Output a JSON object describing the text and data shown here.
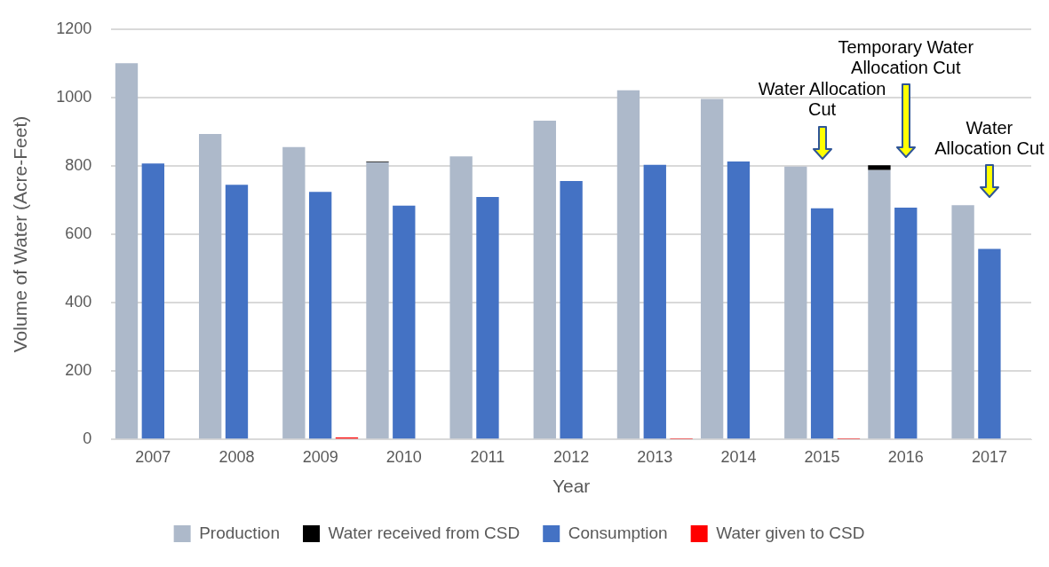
{
  "chart_data": {
    "type": "bar",
    "xlabel": "Year",
    "ylabel": "Volume of Water (Acre-Feet)",
    "categories": [
      "2007",
      "2008",
      "2009",
      "2010",
      "2011",
      "2012",
      "2013",
      "2014",
      "2015",
      "2016",
      "2017"
    ],
    "series": [
      {
        "name": "Production",
        "color": "#adb9ca",
        "values": [
          1100,
          893,
          855,
          811,
          828,
          932,
          1021,
          996,
          798,
          788,
          685
        ]
      },
      {
        "name": "Water received from CSD",
        "color": "#000000",
        "base": [
          null,
          null,
          null,
          811,
          null,
          null,
          null,
          null,
          null,
          788,
          null
        ],
        "values": [
          null,
          null,
          null,
          2,
          null,
          null,
          null,
          null,
          null,
          14,
          null
        ]
      },
      {
        "name": "Consumption",
        "color": "#4472c4",
        "values": [
          807,
          745,
          724,
          684,
          709,
          756,
          803,
          813,
          676,
          678,
          557
        ]
      },
      {
        "name": "Water given to CSD",
        "color": "#ff0000",
        "values": [
          0,
          0,
          6,
          0,
          0,
          0,
          1,
          0,
          1,
          0,
          0
        ]
      }
    ],
    "ylim": [
      0,
      1200
    ],
    "yticks": [
      0,
      200,
      400,
      600,
      800,
      1000,
      1200
    ],
    "grid": "y",
    "legend": "bottom",
    "annotations": [
      "Water Allocation Cut",
      "Temporary Water Allocation Cut",
      "Water Allocation Cut"
    ]
  }
}
